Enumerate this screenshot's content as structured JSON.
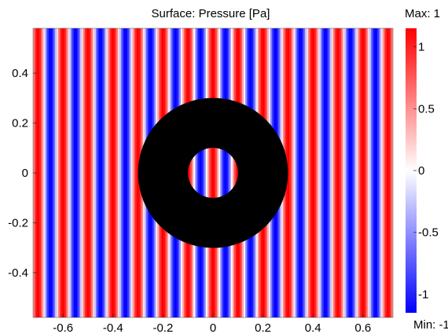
{
  "chart_data": {
    "type": "heatmap",
    "title": "Surface: Pressure [Pa]",
    "x_ticks": [
      "-0.6",
      "-0.4",
      "-0.2",
      "0",
      "0.2",
      "0.4",
      "0.6"
    ],
    "x_tick_values": [
      -0.6,
      -0.4,
      -0.2,
      0,
      0.2,
      0.4,
      0.6
    ],
    "y_ticks": [
      "0.4",
      "0.2",
      "0",
      "-0.2",
      "-0.4"
    ],
    "y_tick_values": [
      0.4,
      0.2,
      0,
      -0.2,
      -0.4
    ],
    "xlim": [
      -0.72,
      0.72
    ],
    "ylim": [
      -0.58,
      0.58
    ],
    "field": {
      "quantity": "Pressure",
      "unit": "Pa",
      "pattern": "plane wave, vertical fronts",
      "wavelength": 0.1,
      "phase_zero_x": 0.0
    },
    "annulus": {
      "center": [
        0,
        0
      ],
      "inner_radius": 0.1,
      "outer_radius": 0.3,
      "color": "#000000"
    },
    "colorbar": {
      "max_label": "Max: 1",
      "min_label": "Min: -1",
      "range": [
        -1.15,
        1.15
      ],
      "tick_labels": [
        "1",
        "0.5",
        "0",
        "-0.5",
        "-1"
      ],
      "tick_values": [
        1,
        0.5,
        0,
        -0.5,
        -1
      ],
      "colormap": [
        "#0000ff",
        "#ffffff",
        "#ff0000"
      ]
    }
  }
}
